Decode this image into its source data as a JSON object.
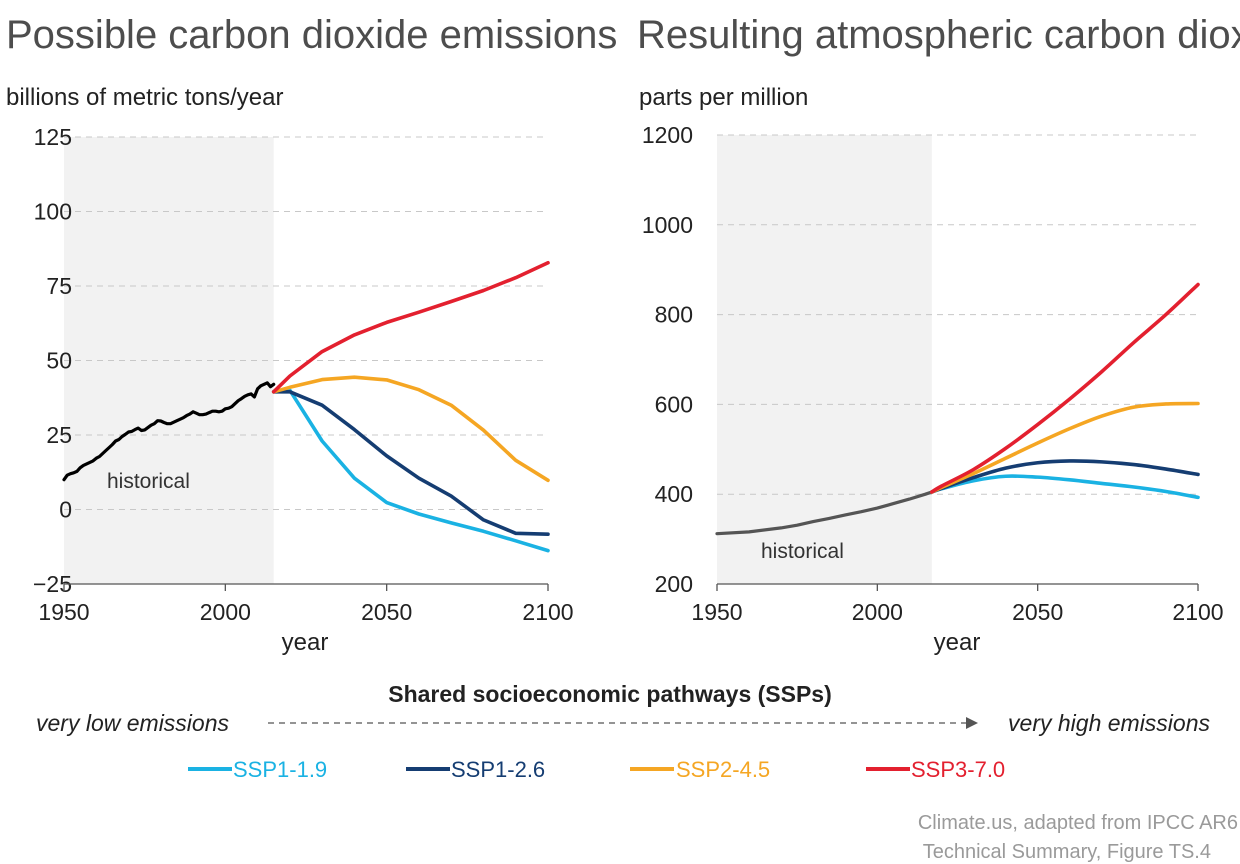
{
  "chart_data": [
    {
      "type": "line",
      "title": "Possible carbon dioxide emissions",
      "ylabel": "billions of metric tons/year",
      "xlabel": "year",
      "xlim": [
        1950,
        2100
      ],
      "ylim": [
        -25,
        125
      ],
      "x_ticks": [
        1950,
        2000,
        2050,
        2100
      ],
      "y_ticks": [
        -25,
        0,
        25,
        50,
        75,
        100,
        125
      ],
      "y_tick_labels": [
        "−25",
        "0",
        "25",
        "50",
        "75",
        "100",
        "125"
      ],
      "shaded_region": {
        "x": [
          1950,
          2015
        ],
        "label": "historical"
      },
      "grid": "horizontal dashed",
      "series": [
        {
          "name": "historical",
          "color": "#000000",
          "x": [
            1950,
            1951,
            1952,
            1953,
            1954,
            1955,
            1956,
            1957,
            1958,
            1959,
            1960,
            1961,
            1962,
            1963,
            1964,
            1965,
            1966,
            1967,
            1968,
            1969,
            1970,
            1971,
            1972,
            1973,
            1974,
            1975,
            1976,
            1977,
            1978,
            1979,
            1980,
            1981,
            1982,
            1983,
            1984,
            1985,
            1986,
            1987,
            1988,
            1989,
            1990,
            1991,
            1992,
            1993,
            1994,
            1995,
            1996,
            1997,
            1998,
            1999,
            2000,
            2001,
            2002,
            2003,
            2004,
            2005,
            2006,
            2007,
            2008,
            2009,
            2010,
            2011,
            2012,
            2013,
            2014,
            2015
          ],
          "y": [
            10,
            11.5,
            12,
            12.3,
            12.8,
            14,
            14.8,
            15.3,
            15.8,
            16.3,
            17.2,
            17.8,
            18.8,
            19.8,
            20.8,
            21.8,
            23,
            23.5,
            24.5,
            25.2,
            26,
            26.2,
            26.8,
            27.3,
            26.5,
            26.7,
            27.5,
            28.3,
            28.8,
            29.8,
            29.7,
            29.2,
            28.8,
            28.8,
            29.3,
            29.8,
            30.3,
            30.8,
            31.5,
            32,
            32.8,
            32.3,
            31.8,
            31.8,
            32,
            32.5,
            33,
            33,
            32.8,
            33,
            33.8,
            34,
            34.5,
            35.5,
            36.5,
            37.2,
            38,
            38.5,
            38.8,
            37.8,
            40.5,
            41.5,
            42,
            42.5,
            41.2,
            42
          ]
        },
        {
          "name": "SSP1-1.9",
          "color": "#1ab2e3",
          "x": [
            2015,
            2020,
            2030,
            2040,
            2050,
            2060,
            2070,
            2080,
            2090,
            2100
          ],
          "y": [
            39.5,
            40,
            23,
            10.5,
            2.3,
            -1.5,
            -4.5,
            -7.3,
            -10.5,
            -13.8
          ]
        },
        {
          "name": "SSP1-2.6",
          "color": "#153d72",
          "x": [
            2015,
            2020,
            2030,
            2040,
            2050,
            2060,
            2070,
            2080,
            2090,
            2100
          ],
          "y": [
            39.5,
            39.5,
            35,
            26.8,
            18,
            10.5,
            4.5,
            -3.5,
            -8,
            -8.3
          ]
        },
        {
          "name": "SSP2-4.5",
          "color": "#f5a623",
          "x": [
            2015,
            2020,
            2030,
            2040,
            2050,
            2060,
            2070,
            2080,
            2090,
            2100
          ],
          "y": [
            39.5,
            41,
            43.6,
            44.4,
            43.5,
            40.2,
            35,
            26.6,
            16.5,
            9.8
          ]
        },
        {
          "name": "SSP3-7.0",
          "color": "#e3202f",
          "x": [
            2015,
            2020,
            2030,
            2040,
            2050,
            2060,
            2070,
            2080,
            2090,
            2100
          ],
          "y": [
            39.5,
            44.8,
            53,
            58.6,
            62.8,
            66.2,
            69.8,
            73.5,
            77.8,
            82.8
          ]
        }
      ]
    },
    {
      "type": "line",
      "title": "Resulting atmospheric carbon dioxide",
      "ylabel": "parts per million",
      "xlabel": "year",
      "xlim": [
        1950,
        2100
      ],
      "ylim": [
        200,
        1200
      ],
      "x_ticks": [
        1950,
        2000,
        2050,
        2100
      ],
      "y_ticks": [
        200,
        400,
        600,
        800,
        1000,
        1200
      ],
      "y_tick_labels": [
        "200",
        "400",
        "600",
        "800",
        "1000",
        "1200"
      ],
      "shaded_region": {
        "x": [
          1950,
          2017
        ],
        "label": "historical"
      },
      "grid": "horizontal dashed",
      "series": [
        {
          "name": "historical",
          "color": "#555555",
          "x": [
            1950,
            1960,
            1970,
            1975,
            1980,
            1985,
            1990,
            1995,
            2000,
            2005,
            2010,
            2015,
            2017
          ],
          "y": [
            312,
            316,
            325,
            331,
            339,
            346,
            354,
            361,
            369,
            379,
            389,
            400,
            405
          ]
        },
        {
          "name": "SSP1-1.9",
          "color": "#1ab2e3",
          "x": [
            2017,
            2020,
            2030,
            2040,
            2050,
            2060,
            2070,
            2080,
            2090,
            2100
          ],
          "y": [
            405,
            412,
            430,
            440,
            438,
            432,
            424,
            416,
            406,
            393
          ]
        },
        {
          "name": "SSP1-2.6",
          "color": "#153d72",
          "x": [
            2017,
            2020,
            2030,
            2040,
            2050,
            2060,
            2070,
            2080,
            2090,
            2100
          ],
          "y": [
            405,
            413,
            437,
            458,
            470,
            474,
            472,
            466,
            456,
            444
          ]
        },
        {
          "name": "SSP2-4.5",
          "color": "#f5a623",
          "x": [
            2017,
            2020,
            2030,
            2040,
            2050,
            2060,
            2070,
            2080,
            2090,
            2100
          ],
          "y": [
            405,
            415,
            446,
            480,
            514,
            546,
            574,
            594,
            601,
            602
          ]
        },
        {
          "name": "SSP3-7.0",
          "color": "#e3202f",
          "x": [
            2017,
            2020,
            2030,
            2040,
            2050,
            2060,
            2070,
            2080,
            2090,
            2100
          ],
          "y": [
            405,
            418,
            455,
            502,
            555,
            612,
            673,
            738,
            800,
            867
          ]
        }
      ]
    }
  ],
  "legend": {
    "title": "Shared socioeconomic pathways (SSPs)",
    "low_label": "very low emissions",
    "high_label": "very high emissions",
    "items": [
      {
        "label": "SSP1-1.9",
        "color": "#1ab2e3"
      },
      {
        "label": "SSP1-2.6",
        "color": "#153d72"
      },
      {
        "label": "SSP2-4.5",
        "color": "#f5a623"
      },
      {
        "label": "SSP3-7.0",
        "color": "#e3202f"
      }
    ]
  },
  "source": {
    "line1": "Climate.us, adapted from IPCC AR6",
    "line2": "Technical Summary, Figure TS.4"
  }
}
